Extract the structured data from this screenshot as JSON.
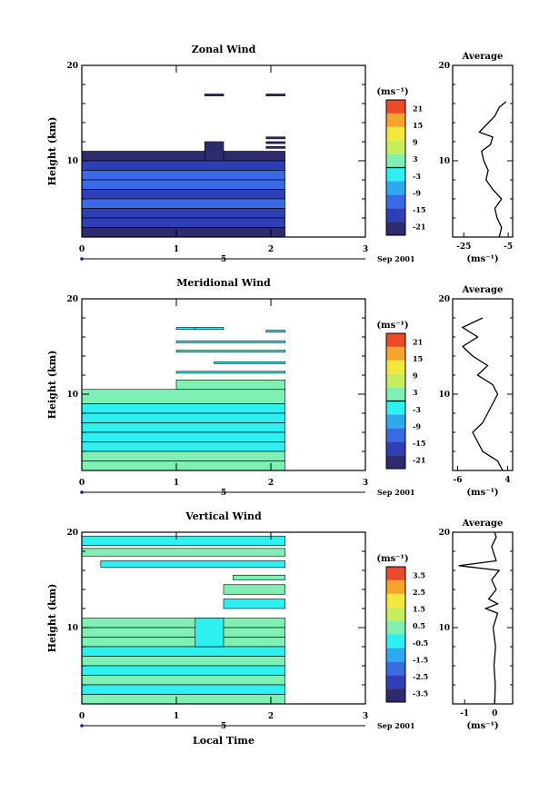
{
  "chart_data": [
    {
      "type": "heatmap",
      "title": "Zonal Wind",
      "ylabel": "Height (km)",
      "xlabel": "",
      "xlim": [
        0,
        3
      ],
      "ylim": [
        2,
        20
      ],
      "xticks": [
        "0",
        "1",
        "2",
        "3"
      ],
      "yticks": [
        "20",
        "10"
      ],
      "ytick_values": [
        20,
        10
      ],
      "date_label": "Sep 2001",
      "date_marker": "5",
      "colorbar": {
        "unit": "(ms⁻¹)",
        "ticks": [
          "21",
          "15",
          "9",
          "3",
          "-3",
          "-9",
          "-15",
          "-21"
        ],
        "range": [
          -24,
          24
        ],
        "zero_line": true
      },
      "cells": [
        {
          "t0": 0.0,
          "t1": 2.15,
          "h0": 10.0,
          "h1": 11.0,
          "v": -20
        },
        {
          "t0": 0.0,
          "t1": 2.15,
          "h0": 9.0,
          "h1": 10.0,
          "v": -18
        },
        {
          "t0": 0.0,
          "t1": 2.15,
          "h0": 8.0,
          "h1": 9.0,
          "v": -14
        },
        {
          "t0": 0.0,
          "t1": 2.15,
          "h0": 7.0,
          "h1": 8.0,
          "v": -12
        },
        {
          "t0": 0.0,
          "t1": 2.15,
          "h0": 6.0,
          "h1": 7.0,
          "v": -15
        },
        {
          "t0": 0.0,
          "t1": 2.15,
          "h0": 5.0,
          "h1": 6.0,
          "v": -13
        },
        {
          "t0": 0.0,
          "t1": 2.15,
          "h0": 4.0,
          "h1": 5.0,
          "v": -16
        },
        {
          "t0": 0.0,
          "t1": 2.15,
          "h0": 3.0,
          "h1": 4.0,
          "v": -18
        },
        {
          "t0": 0.0,
          "t1": 2.15,
          "h0": 2.0,
          "h1": 3.0,
          "v": -20
        },
        {
          "t0": 1.3,
          "t1": 1.5,
          "h0": 10.0,
          "h1": 12.0,
          "v": -20
        },
        {
          "t0": 1.3,
          "t1": 1.5,
          "h0": 16.8,
          "h1": 17.0,
          "v": -20
        },
        {
          "t0": 1.95,
          "t1": 2.15,
          "h0": 16.8,
          "h1": 17.0,
          "v": -20
        },
        {
          "t0": 1.95,
          "t1": 2.15,
          "h0": 12.3,
          "h1": 12.5,
          "v": -20
        },
        {
          "t0": 1.95,
          "t1": 2.15,
          "h0": 11.8,
          "h1": 12.0,
          "v": -20
        },
        {
          "t0": 1.95,
          "t1": 2.15,
          "h0": 11.3,
          "h1": 11.5,
          "v": -20
        }
      ],
      "average": {
        "title": "Average",
        "xlabel": "(ms⁻¹)",
        "xticks": [
          "-25",
          "-5"
        ],
        "xtick_values": [
          -25,
          -5
        ],
        "xlim": [
          -30,
          -3
        ],
        "yticks": [
          "20",
          "10"
        ],
        "profile": [
          [
            -9,
            2.0
          ],
          [
            -8,
            3.0
          ],
          [
            -10,
            4.0
          ],
          [
            -11,
            5.0
          ],
          [
            -8,
            6.0
          ],
          [
            -12,
            7.0
          ],
          [
            -15,
            8.0
          ],
          [
            -14,
            9.0
          ],
          [
            -16,
            10.0
          ],
          [
            -17,
            11.0
          ],
          [
            -13,
            11.7
          ],
          [
            -12,
            12.5
          ],
          [
            -18,
            13.0
          ],
          [
            -11,
            14.7
          ],
          [
            -9,
            15.6
          ],
          [
            -6,
            16.2
          ]
        ]
      }
    },
    {
      "type": "heatmap",
      "title": "Meridional Wind",
      "ylabel": "Height (km)",
      "xlabel": "",
      "xlim": [
        0,
        3
      ],
      "ylim": [
        2,
        20
      ],
      "xticks": [
        "0",
        "1",
        "2",
        "3"
      ],
      "yticks": [
        "20",
        "10"
      ],
      "ytick_values": [
        20,
        10
      ],
      "date_label": "Sep 2001",
      "date_marker": "5",
      "colorbar": {
        "unit": "(ms⁻¹)",
        "ticks": [
          "21",
          "15",
          "9",
          "3",
          "-3",
          "-9",
          "-15",
          "-21"
        ],
        "range": [
          -24,
          24
        ],
        "zero_line": true
      },
      "cells": [
        {
          "t0": 0.0,
          "t1": 2.15,
          "h0": 9.0,
          "h1": 10.5,
          "v": 0.5
        },
        {
          "t0": 0.0,
          "t1": 2.15,
          "h0": 8.0,
          "h1": 9.0,
          "v": -2
        },
        {
          "t0": 0.0,
          "t1": 2.15,
          "h0": 7.0,
          "h1": 8.0,
          "v": -3.5
        },
        {
          "t0": 0.0,
          "t1": 2.15,
          "h0": 6.0,
          "h1": 7.0,
          "v": -1.5
        },
        {
          "t0": 0.0,
          "t1": 2.15,
          "h0": 5.0,
          "h1": 6.0,
          "v": -4
        },
        {
          "t0": 0.0,
          "t1": 2.15,
          "h0": 4.0,
          "h1": 5.0,
          "v": -2
        },
        {
          "t0": 0.0,
          "t1": 2.15,
          "h0": 3.0,
          "h1": 4.0,
          "v": 0.5
        },
        {
          "t0": 0.0,
          "t1": 2.15,
          "h0": 2.0,
          "h1": 3.0,
          "v": 1.5
        },
        {
          "t0": 1.0,
          "t1": 2.15,
          "h0": 10.5,
          "h1": 11.5,
          "v": 1
        },
        {
          "t0": 1.0,
          "t1": 1.2,
          "h0": 16.8,
          "h1": 17.0,
          "v": -4
        },
        {
          "t0": 1.2,
          "t1": 1.5,
          "h0": 16.8,
          "h1": 17.0,
          "v": -2
        },
        {
          "t0": 1.95,
          "t1": 2.15,
          "h0": 16.5,
          "h1": 16.7,
          "v": -2
        },
        {
          "t0": 1.0,
          "t1": 2.15,
          "h0": 15.4,
          "h1": 15.6,
          "v": -2
        },
        {
          "t0": 1.0,
          "t1": 2.15,
          "h0": 14.4,
          "h1": 14.6,
          "v": -4
        },
        {
          "t0": 1.4,
          "t1": 2.15,
          "h0": 13.2,
          "h1": 13.4,
          "v": -3
        },
        {
          "t0": 1.0,
          "t1": 2.15,
          "h0": 12.2,
          "h1": 12.4,
          "v": -4
        }
      ],
      "average": {
        "title": "Average",
        "xlabel": "(ms⁻¹)",
        "xticks": [
          "-6",
          "4"
        ],
        "xtick_values": [
          -6,
          4
        ],
        "xlim": [
          -7,
          5
        ],
        "yticks": [
          "20",
          "10"
        ],
        "profile": [
          [
            3,
            2.0
          ],
          [
            2,
            3.0
          ],
          [
            -1,
            4.0
          ],
          [
            -2,
            5.0
          ],
          [
            -3,
            6.0
          ],
          [
            -1,
            7.0
          ],
          [
            0,
            8.0
          ],
          [
            1,
            9.0
          ],
          [
            2,
            10.0
          ],
          [
            1,
            11.0
          ],
          [
            -2,
            12.0
          ],
          [
            0,
            13.0
          ],
          [
            -3,
            14.0
          ],
          [
            -5,
            15.0
          ],
          [
            -2,
            16.0
          ],
          [
            -5,
            17.0
          ],
          [
            -1,
            18.0
          ]
        ]
      }
    },
    {
      "type": "heatmap",
      "title": "Vertical Wind",
      "ylabel": "Height (km)",
      "xlabel": "Local Time",
      "xlim": [
        0,
        3
      ],
      "ylim": [
        2,
        20
      ],
      "xticks": [
        "0",
        "1",
        "2",
        "3"
      ],
      "yticks": [
        "20",
        "10"
      ],
      "ytick_values": [
        20,
        10
      ],
      "date_label": "Sep 2001",
      "date_marker": "5",
      "colorbar": {
        "unit": "(ms⁻¹)",
        "ticks": [
          "3.5",
          "2.5",
          "1.5",
          "0.5",
          "-0.5",
          "-1.5",
          "-2.5",
          "-3.5"
        ],
        "range": [
          -4,
          4
        ],
        "zero_line": false
      },
      "cells": [
        {
          "t0": 0.0,
          "t1": 2.15,
          "h0": 10.0,
          "h1": 11.0,
          "v": 0.2
        },
        {
          "t0": 0.0,
          "t1": 2.15,
          "h0": 9.0,
          "h1": 10.0,
          "v": 0.3
        },
        {
          "t0": 0.0,
          "t1": 2.15,
          "h0": 8.0,
          "h1": 9.0,
          "v": 0.2
        },
        {
          "t0": 0.0,
          "t1": 2.15,
          "h0": 7.0,
          "h1": 8.0,
          "v": -0.3
        },
        {
          "t0": 0.0,
          "t1": 2.15,
          "h0": 6.0,
          "h1": 7.0,
          "v": 0.2
        },
        {
          "t0": 0.0,
          "t1": 2.15,
          "h0": 5.0,
          "h1": 6.0,
          "v": -0.3
        },
        {
          "t0": 0.0,
          "t1": 2.15,
          "h0": 4.0,
          "h1": 5.0,
          "v": 0.2
        },
        {
          "t0": 0.0,
          "t1": 2.15,
          "h0": 3.0,
          "h1": 4.0,
          "v": -0.3
        },
        {
          "t0": 0.0,
          "t1": 2.15,
          "h0": 2.0,
          "h1": 3.0,
          "v": 0.2
        },
        {
          "t0": 1.2,
          "t1": 1.5,
          "h0": 8.0,
          "h1": 11.0,
          "v": -0.3
        },
        {
          "t0": 0.0,
          "t1": 2.15,
          "h0": 18.6,
          "h1": 19.6,
          "v": -0.3
        },
        {
          "t0": 0.0,
          "t1": 2.15,
          "h0": 17.5,
          "h1": 18.3,
          "v": 0.2
        },
        {
          "t0": 0.2,
          "t1": 2.15,
          "h0": 16.3,
          "h1": 17.0,
          "v": -0.3
        },
        {
          "t0": 1.6,
          "t1": 2.15,
          "h0": 15.0,
          "h1": 15.5,
          "v": 0.2
        },
        {
          "t0": 1.5,
          "t1": 2.15,
          "h0": 13.5,
          "h1": 14.5,
          "v": 0.2
        },
        {
          "t0": 1.5,
          "t1": 2.15,
          "h0": 12.0,
          "h1": 13.0,
          "v": -0.3
        }
      ],
      "average": {
        "title": "Average",
        "xlabel": "(ms⁻¹)",
        "xticks": [
          "-1",
          "0"
        ],
        "xtick_values": [
          -1,
          0
        ],
        "xlim": [
          -1.4,
          0.6
        ],
        "yticks": [
          "20",
          "10"
        ],
        "profile": [
          [
            0.0,
            2.0
          ],
          [
            0.02,
            4.0
          ],
          [
            -0.02,
            6.0
          ],
          [
            0.03,
            8.0
          ],
          [
            -0.05,
            10.0
          ],
          [
            0.1,
            11.5
          ],
          [
            -0.3,
            12.0
          ],
          [
            0.1,
            12.5
          ],
          [
            -0.2,
            13.0
          ],
          [
            0.05,
            14.0
          ],
          [
            -0.1,
            15.0
          ],
          [
            0.15,
            16.0
          ],
          [
            -1.2,
            16.5
          ],
          [
            0.05,
            17.0
          ],
          [
            -0.1,
            18.5
          ],
          [
            0.05,
            19.5
          ],
          [
            0.0,
            20.0
          ]
        ]
      }
    }
  ]
}
